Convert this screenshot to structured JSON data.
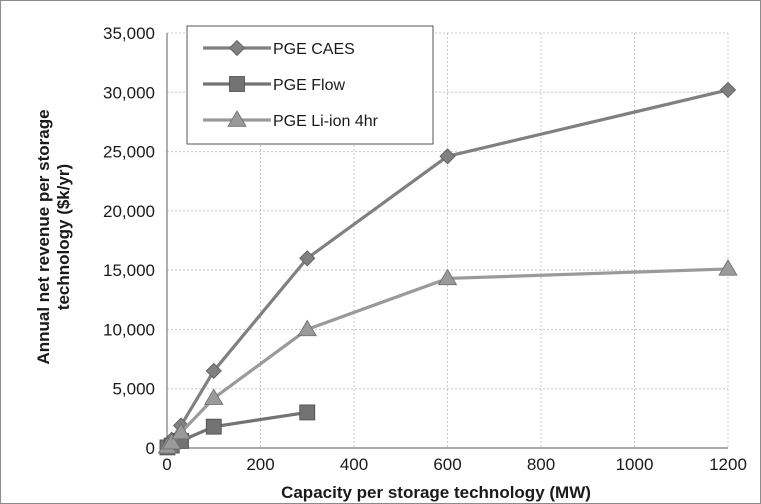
{
  "chart_data": {
    "type": "line",
    "title": "",
    "xlabel": "Capacity per storage technology  (MW)",
    "ylabel": [
      "Annual net revenue  per storage",
      "technology ($k/yr)"
    ],
    "xlim": [
      0,
      1200
    ],
    "ylim": [
      0,
      35000
    ],
    "x_ticks": [
      0,
      200,
      400,
      600,
      800,
      1000,
      1200
    ],
    "x_tick_labels": [
      "0",
      "200",
      "400",
      "600",
      "800",
      "1000",
      "1200"
    ],
    "y_ticks": [
      0,
      5000,
      10000,
      15000,
      20000,
      25000,
      30000,
      35000
    ],
    "y_tick_labels": [
      "0",
      "5,000",
      "10,000",
      "15,000",
      "20,000",
      "25,000",
      "30,000",
      "35,000"
    ],
    "grid": true,
    "legend_position": "top-left",
    "series": [
      {
        "name": "PGE CAES",
        "marker": "diamond",
        "color": "#808080",
        "x": [
          1,
          10,
          30,
          100,
          300,
          600,
          1200
        ],
        "y": [
          150,
          700,
          1900,
          6500,
          16000,
          24600,
          30200
        ]
      },
      {
        "name": "PGE Flow",
        "marker": "square",
        "color": "#737373",
        "x": [
          1,
          10,
          30,
          100,
          300
        ],
        "y": [
          50,
          200,
          600,
          1800,
          3000
        ]
      },
      {
        "name": "PGE Li-ion 4hr",
        "marker": "triangle",
        "color": "#9a9a9a",
        "x": [
          1,
          10,
          30,
          100,
          300,
          600,
          1200
        ],
        "y": [
          100,
          450,
          1300,
          4200,
          10000,
          14300,
          15100
        ]
      }
    ]
  }
}
